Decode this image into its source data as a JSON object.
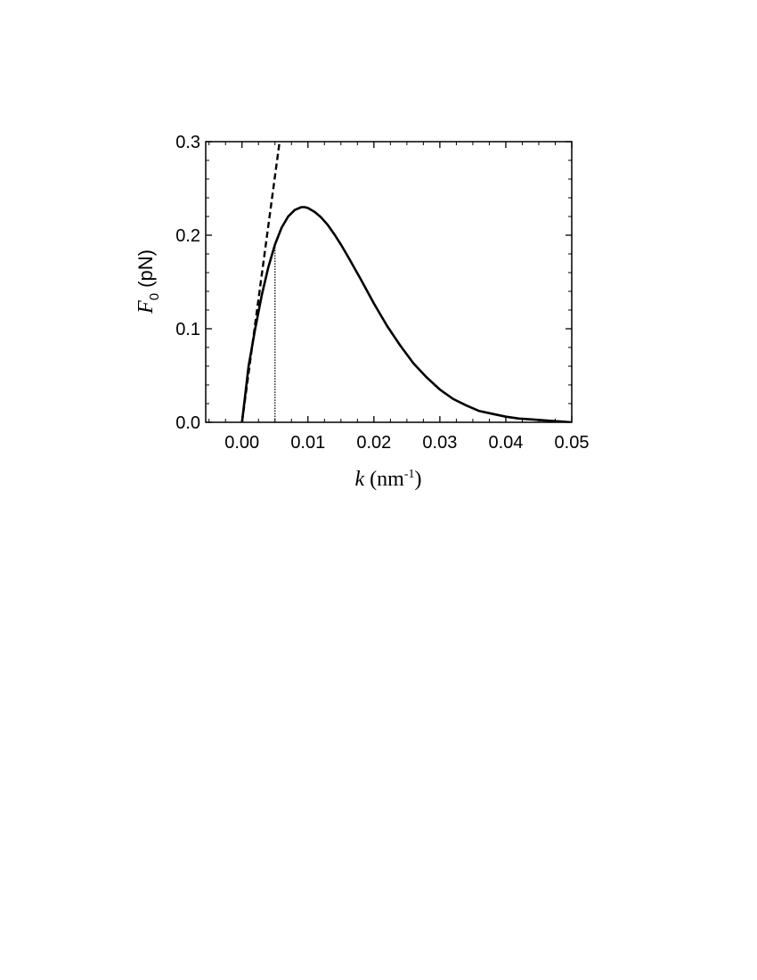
{
  "chart_data": {
    "type": "line",
    "xlabel": {
      "symbol": "k",
      "unit_prefix": " (nm",
      "unit_sup": "-1",
      "unit_suffix": ")"
    },
    "ylabel": {
      "symbol": "F",
      "subscript": "0",
      "unit": " (pN)"
    },
    "xlim": [
      -0.0055,
      0.05
    ],
    "ylim": [
      0.0,
      0.3
    ],
    "xticks": [
      {
        "value": 0.0,
        "label": "0.00"
      },
      {
        "value": 0.01,
        "label": "0.01"
      },
      {
        "value": 0.02,
        "label": "0.02"
      },
      {
        "value": 0.03,
        "label": "0.03"
      },
      {
        "value": 0.04,
        "label": "0.04"
      },
      {
        "value": 0.05,
        "label": "0.05"
      }
    ],
    "yticks": [
      {
        "value": 0.0,
        "label": "0.0"
      },
      {
        "value": 0.1,
        "label": "0.1"
      },
      {
        "value": 0.2,
        "label": "0.2"
      },
      {
        "value": 0.3,
        "label": "0.3"
      }
    ],
    "grid": false,
    "legend": "none",
    "series": [
      {
        "style": "solid",
        "x": [
          0.0,
          0.001,
          0.002,
          0.003,
          0.004,
          0.005,
          0.006,
          0.007,
          0.008,
          0.009,
          0.0095,
          0.01,
          0.011,
          0.012,
          0.013,
          0.014,
          0.015,
          0.016,
          0.018,
          0.02,
          0.022,
          0.024,
          0.026,
          0.028,
          0.03,
          0.032,
          0.034,
          0.036,
          0.038,
          0.04,
          0.042,
          0.044,
          0.046,
          0.048,
          0.05
        ],
        "y": [
          0.0,
          0.06,
          0.1,
          0.136,
          0.166,
          0.19,
          0.208,
          0.22,
          0.227,
          0.23,
          0.23,
          0.229,
          0.225,
          0.219,
          0.211,
          0.201,
          0.19,
          0.178,
          0.153,
          0.127,
          0.103,
          0.082,
          0.063,
          0.048,
          0.035,
          0.025,
          0.018,
          0.012,
          0.009,
          0.006,
          0.004,
          0.003,
          0.002,
          0.001,
          0.0
        ]
      },
      {
        "style": "dashed",
        "x": [
          0.0,
          0.0057
        ],
        "y": [
          0.0,
          0.3
        ]
      },
      {
        "style": "dotted",
        "x": [
          0.005,
          0.005
        ],
        "y": [
          0.0,
          0.19
        ]
      }
    ]
  }
}
